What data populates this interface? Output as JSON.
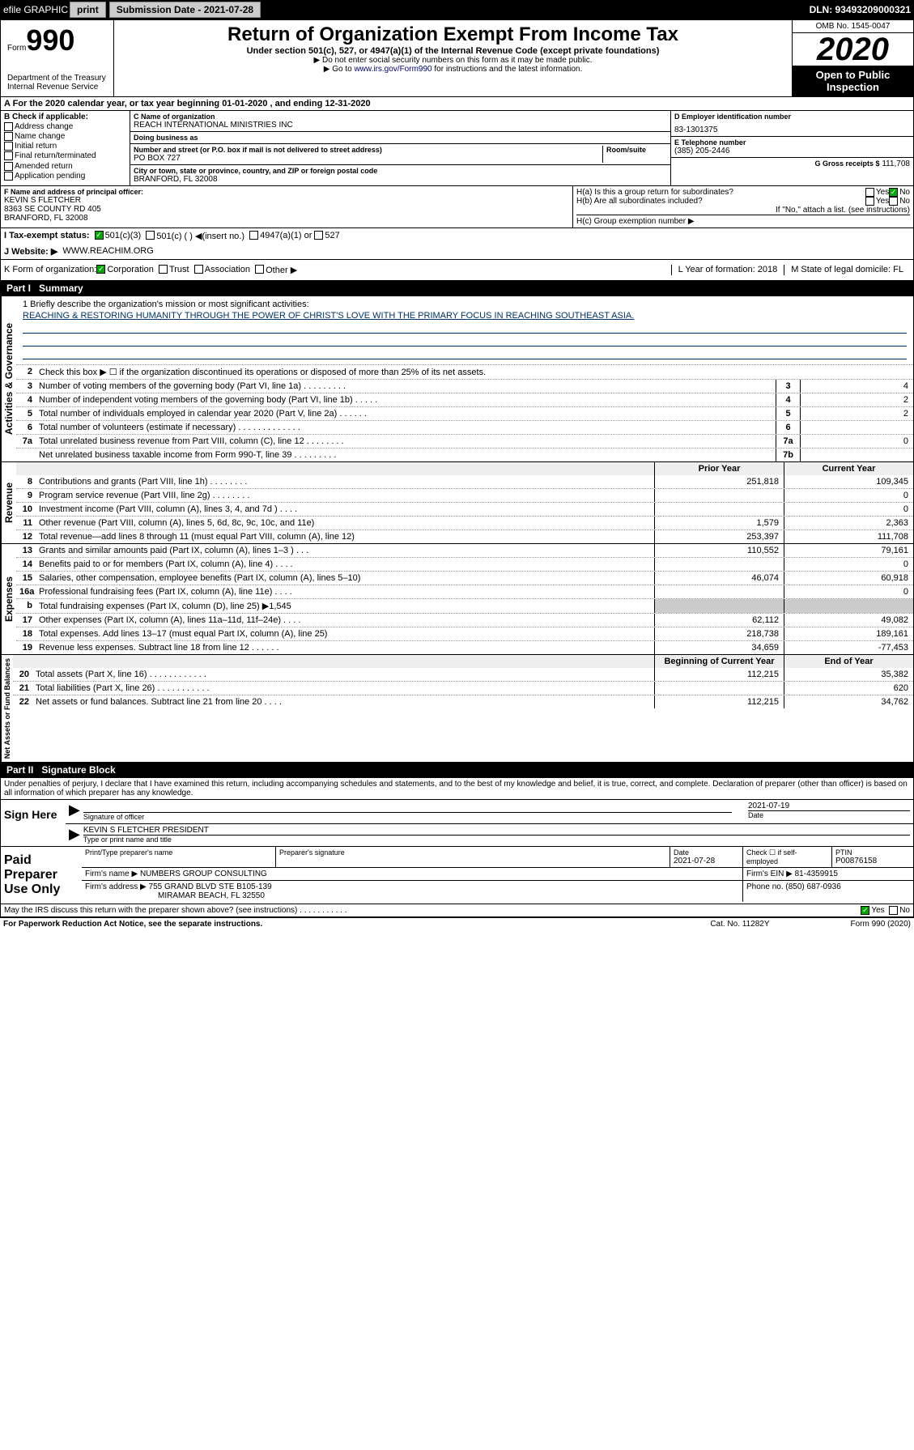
{
  "topbar": {
    "efile": "efile GRAPHIC",
    "print": "print",
    "subdate_lbl": "Submission Date - 2021-07-28",
    "dln": "DLN: 93493209000321"
  },
  "header": {
    "form_prefix": "Form",
    "form_num": "990",
    "dept": "Department of the Treasury\nInternal Revenue Service",
    "title": "Return of Organization Exempt From Income Tax",
    "subtitle": "Under section 501(c), 527, or 4947(a)(1) of the Internal Revenue Code (except private foundations)",
    "note1": "▶ Do not enter social security numbers on this form as it may be made public.",
    "note2_pre": "▶ Go to ",
    "note2_link": "www.irs.gov/Form990",
    "note2_post": " for instructions and the latest information.",
    "omb": "OMB No. 1545-0047",
    "year": "2020",
    "open": "Open to Public Inspection"
  },
  "a_line": "A For the 2020 calendar year, or tax year beginning 01-01-2020   , and ending 12-31-2020",
  "b": {
    "lbl": "B Check if applicable:",
    "opts": [
      "Address change",
      "Name change",
      "Initial return",
      "Final return/terminated",
      "Amended return",
      "Application pending"
    ]
  },
  "c": {
    "name_lbl": "C Name of organization",
    "name": "REACH INTERNATIONAL MINISTRIES INC",
    "dba_lbl": "Doing business as",
    "dba": "",
    "addr_lbl": "Number and street (or P.O. box if mail is not delivered to street address)",
    "room_lbl": "Room/suite",
    "addr": "PO BOX 727",
    "city_lbl": "City or town, state or province, country, and ZIP or foreign postal code",
    "city": "BRANFORD, FL  32008"
  },
  "d": {
    "lbl": "D Employer identification number",
    "val": "83-1301375"
  },
  "e": {
    "lbl": "E Telephone number",
    "val": "(385) 205-2446"
  },
  "g": {
    "lbl": "G Gross receipts $",
    "val": "111,708"
  },
  "f": {
    "lbl": "F Name and address of principal officer:",
    "name": "KEVIN S FLETCHER",
    "addr1": "8363 SE COUNTY RD 405",
    "addr2": "BRANFORD, FL  32008"
  },
  "h": {
    "a": "H(a)  Is this a group return for subordinates?",
    "a_yes": "Yes",
    "a_no": "No",
    "b": "H(b)  Are all subordinates included?",
    "b_yes": "Yes",
    "b_no": "No",
    "b_note": "If \"No,\" attach a list. (see instructions)",
    "c": "H(c)  Group exemption number ▶"
  },
  "i": {
    "lbl": "I   Tax-exempt status:",
    "o1": "501(c)(3)",
    "o2": "501(c) (  ) ◀(insert no.)",
    "o3": "4947(a)(1) or",
    "o4": "527"
  },
  "j": {
    "lbl": "J   Website: ▶",
    "val": "WWW.REACHIM.ORG"
  },
  "k": {
    "lbl": "K Form of organization:",
    "o1": "Corporation",
    "o2": "Trust",
    "o3": "Association",
    "o4": "Other ▶",
    "l_lbl": "L Year of formation:",
    "l_val": "2018",
    "m_lbl": "M State of legal domicile:",
    "m_val": "FL"
  },
  "part1": {
    "num": "Part I",
    "title": "Summary"
  },
  "mission": {
    "lbl": "1  Briefly describe the organization's mission or most significant activities:",
    "txt": "REACHING & RESTORING HUMANITY THROUGH THE POWER OF CHRIST'S LOVE WITH THE PRIMARY FOCUS IN REACHING SOUTHEAST ASIA."
  },
  "governance": {
    "label": "Activities & Governance",
    "l2": "Check this box ▶ ☐  if the organization discontinued its operations or disposed of more than 25% of its net assets.",
    "l3": "Number of voting members of the governing body (Part VI, line 1a)  .    .    .    .    .    .    .    .    .",
    "l3v": "4",
    "l4": "Number of independent voting members of the governing body (Part VI, line 1b)  .    .    .    .    .",
    "l4v": "2",
    "l5": "Total number of individuals employed in calendar year 2020 (Part V, line 2a)  .    .    .    .    .    .",
    "l5v": "2",
    "l6": "Total number of volunteers (estimate if necessary)  .    .    .    .    .    .    .    .    .    .    .    .    .",
    "l6v": "",
    "l7a": "Total unrelated business revenue from Part VIII, column (C), line 12  .    .    .    .    .    .    .    .",
    "l7av": "0",
    "l7b": "Net unrelated business taxable income from Form 990-T, line 39  .    .    .    .    .    .    .    .    .",
    "l7bv": ""
  },
  "cols": {
    "py": "Prior Year",
    "cy": "Current Year"
  },
  "revenue": {
    "label": "Revenue",
    "rows": [
      {
        "n": "8",
        "t": "Contributions and grants (Part VIII, line 1h)  .    .    .    .    .    .    .    .",
        "py": "251,818",
        "cy": "109,345"
      },
      {
        "n": "9",
        "t": "Program service revenue (Part VIII, line 2g)  .    .    .    .    .    .    .    .",
        "py": "",
        "cy": "0"
      },
      {
        "n": "10",
        "t": "Investment income (Part VIII, column (A), lines 3, 4, and 7d )  .    .    .    .",
        "py": "",
        "cy": "0"
      },
      {
        "n": "11",
        "t": "Other revenue (Part VIII, column (A), lines 5, 6d, 8c, 9c, 10c, and 11e)",
        "py": "1,579",
        "cy": "2,363"
      },
      {
        "n": "12",
        "t": "Total revenue—add lines 8 through 11 (must equal Part VIII, column (A), line 12)",
        "py": "253,397",
        "cy": "111,708"
      }
    ]
  },
  "expenses": {
    "label": "Expenses",
    "rows": [
      {
        "n": "13",
        "t": "Grants and similar amounts paid (Part IX, column (A), lines 1–3 )  .    .    .",
        "py": "110,552",
        "cy": "79,161"
      },
      {
        "n": "14",
        "t": "Benefits paid to or for members (Part IX, column (A), line 4)  .    .    .    .",
        "py": "",
        "cy": "0"
      },
      {
        "n": "15",
        "t": "Salaries, other compensation, employee benefits (Part IX, column (A), lines 5–10)",
        "py": "46,074",
        "cy": "60,918"
      },
      {
        "n": "16a",
        "t": "Professional fundraising fees (Part IX, column (A), line 11e)  .    .    .    .",
        "py": "",
        "cy": "0"
      },
      {
        "n": "b",
        "t": "Total fundraising expenses (Part IX, column (D), line 25) ▶1,545",
        "py": "",
        "cy": ""
      },
      {
        "n": "17",
        "t": "Other expenses (Part IX, column (A), lines 11a–11d, 11f–24e)  .    .    .    .",
        "py": "62,112",
        "cy": "49,082"
      },
      {
        "n": "18",
        "t": "Total expenses. Add lines 13–17 (must equal Part IX, column (A), line 25)",
        "py": "218,738",
        "cy": "189,161"
      },
      {
        "n": "19",
        "t": "Revenue less expenses. Subtract line 18 from line 12  .    .    .    .    .    .",
        "py": "34,659",
        "cy": "-77,453"
      }
    ]
  },
  "netassets": {
    "label": "Net Assets or Fund Balances",
    "hdr_py": "Beginning of Current Year",
    "hdr_cy": "End of Year",
    "rows": [
      {
        "n": "20",
        "t": "Total assets (Part X, line 16)  .    .    .    .    .    .    .    .    .    .    .    .",
        "py": "112,215",
        "cy": "35,382"
      },
      {
        "n": "21",
        "t": "Total liabilities (Part X, line 26)  .    .    .    .    .    .    .    .    .    .    .",
        "py": "",
        "cy": "620"
      },
      {
        "n": "22",
        "t": "Net assets or fund balances. Subtract line 21 from line 20  .    .    .    .",
        "py": "112,215",
        "cy": "34,762"
      }
    ]
  },
  "part2": {
    "num": "Part II",
    "title": "Signature Block"
  },
  "sig": {
    "perjury": "Under penalties of perjury, I declare that I have examined this return, including accompanying schedules and statements, and to the best of my knowledge and belief, it is true, correct, and complete. Declaration of preparer (other than officer) is based on all information of which preparer has any knowledge.",
    "sign_here": "Sign Here",
    "sig_of_officer": "Signature of officer",
    "date": "2021-07-19",
    "date_lbl": "Date",
    "name": "KEVIN S FLETCHER  PRESIDENT",
    "name_lbl": "Type or print name and title"
  },
  "paid": {
    "lbl": "Paid Preparer Use Only",
    "h1": "Print/Type preparer's name",
    "h2": "Preparer's signature",
    "h3": "Date",
    "h3v": "2021-07-28",
    "h4": "Check ☐ if self-employed",
    "h5": "PTIN",
    "h5v": "P00876158",
    "firm_lbl": "Firm's name    ▶",
    "firm": "NUMBERS GROUP CONSULTING",
    "ein_lbl": "Firm's EIN ▶",
    "ein": "81-4359915",
    "addr_lbl": "Firm's address ▶",
    "addr1": "755 GRAND BLVD STE B105-139",
    "addr2": "MIRAMAR BEACH, FL  32550",
    "phone_lbl": "Phone no.",
    "phone": "(850) 687-0936"
  },
  "discuss": {
    "q": "May the IRS discuss this return with the preparer shown above? (see instructions)   .    .    .    .    .    .    .    .    .    .    .",
    "yes": "Yes",
    "no": "No"
  },
  "footer": {
    "left": "For Paperwork Reduction Act Notice, see the separate instructions.",
    "mid": "Cat. No. 11282Y",
    "right": "Form 990 (2020)"
  }
}
